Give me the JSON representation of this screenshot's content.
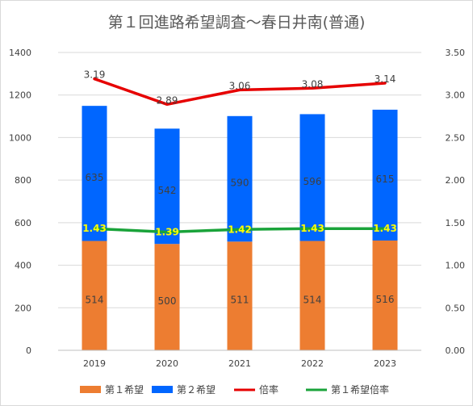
{
  "chart_data": {
    "type": "bar",
    "title": "第１回進路希望調査～春日井南(普通)",
    "categories": [
      "2019",
      "2020",
      "2021",
      "2022",
      "2023"
    ],
    "series": [
      {
        "name": "第１希望",
        "kind": "stacked-bar",
        "axis": "left",
        "color": "#ed7d31",
        "values": [
          514,
          500,
          511,
          514,
          516
        ]
      },
      {
        "name": "第２希望",
        "kind": "stacked-bar",
        "axis": "left",
        "color": "#0066ff",
        "values": [
          635,
          542,
          590,
          596,
          615
        ]
      },
      {
        "name": "倍率",
        "kind": "line",
        "axis": "right",
        "color": "#e60000",
        "values": [
          3.19,
          2.89,
          3.06,
          3.08,
          3.14
        ],
        "labels": [
          "3.19",
          "2.89",
          "3.06",
          "3.08",
          "3.14"
        ]
      },
      {
        "name": "第１希望倍率",
        "kind": "line",
        "axis": "right",
        "color": "#1aa33a",
        "values": [
          1.43,
          1.39,
          1.42,
          1.43,
          1.43
        ],
        "labels": [
          "1.43",
          "1.39",
          "1.42",
          "1.43",
          "1.43"
        ]
      }
    ],
    "left_axis": {
      "min": 0,
      "max": 1400,
      "step": 200,
      "ticks": [
        "0",
        "200",
        "400",
        "600",
        "800",
        "1000",
        "1200",
        "1400"
      ]
    },
    "right_axis": {
      "min": 0,
      "max": 3.5,
      "step": 0.5,
      "ticks": [
        "0.00",
        "0.50",
        "1.00",
        "1.50",
        "2.00",
        "2.50",
        "3.00",
        "3.50"
      ]
    },
    "grid": true,
    "legend_position": "bottom"
  }
}
